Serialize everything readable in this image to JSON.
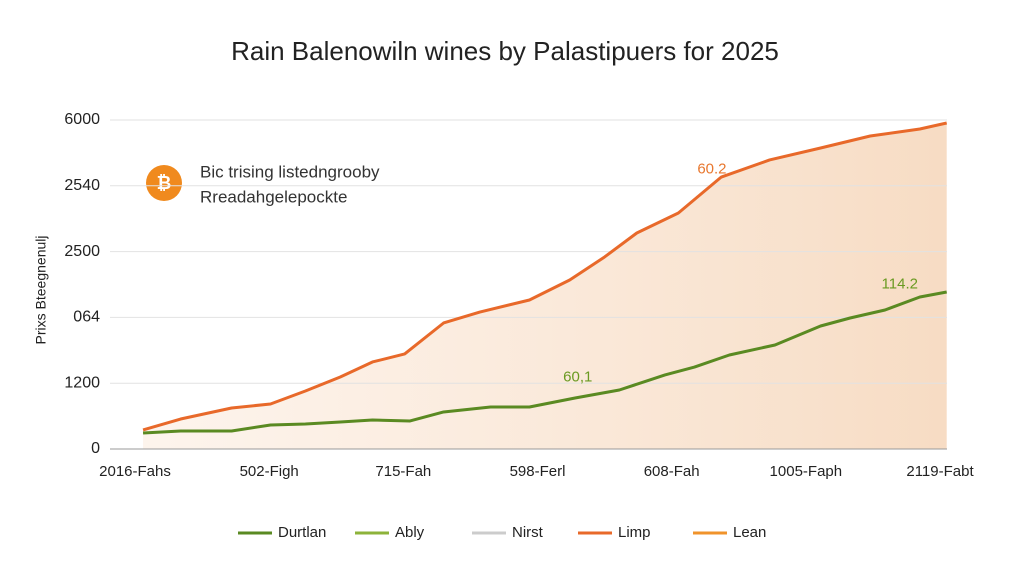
{
  "chart_data": {
    "type": "line",
    "title": "Rain Balenowiln wines by Palastipuers for 2025",
    "y_label": "Prixs Bteegnenulj",
    "info_text": [
      "Bic trising listedngrooby",
      "Rreadahgelepockte"
    ],
    "annotations": [
      {
        "text": "60.2",
        "color": "#e8772e",
        "x": 4.3,
        "y": 5100
      },
      {
        "text": "114.2",
        "color": "#6a9a22",
        "x": 5.7,
        "y": 3000
      },
      {
        "text": "60,1",
        "color": "#6a9a22",
        "x": 3.3,
        "y": 1300
      }
    ],
    "xlim": [
      0,
      6
    ],
    "xticks": [
      {
        "value": 0,
        "label": "2016-Fahs"
      },
      {
        "value": 1,
        "label": "502-Figh"
      },
      {
        "value": 2,
        "label": "715-Fah"
      },
      {
        "value": 3,
        "label": "598-Ferl"
      },
      {
        "value": 4,
        "label": "608-Fah"
      },
      {
        "value": 5,
        "label": "1005-Faph"
      },
      {
        "value": 6,
        "label": "2119-Fabt"
      }
    ],
    "ylim": [
      0,
      6000
    ],
    "yticks": [
      0,
      1200,
      {
        "value": 2400,
        "label": "064"
      },
      {
        "value": 3600,
        "label": "2500"
      },
      {
        "value": 4800,
        "label": "2540"
      },
      6000
    ],
    "grid": true,
    "series": [
      {
        "name": "Durtlan",
        "color": "#5a8a22",
        "x": [
          0.06,
          0.34,
          0.72,
          1.01,
          1.27,
          1.53,
          1.77,
          2.05,
          2.3,
          2.65,
          2.94,
          3.28,
          3.61,
          3.95,
          4.17,
          4.43,
          4.77,
          5.11,
          5.33,
          5.59,
          5.85,
          6.05
        ],
        "values": [
          292,
          328,
          328,
          438,
          456,
          492,
          529,
          511,
          675,
          766,
          766,
          930,
          1076,
          1350,
          1495,
          1714,
          1897,
          2243,
          2389,
          2535,
          2772,
          2863
        ]
      },
      {
        "name": "Ably",
        "color": "#8db33a",
        "x": [],
        "values": []
      },
      {
        "name": "Nirst",
        "color": "#cccccc",
        "x": [],
        "values": []
      },
      {
        "name": "Limp",
        "color": "#e8692a",
        "fill": true,
        "x": [
          0.06,
          0.34,
          0.72,
          1.01,
          1.27,
          1.53,
          1.77,
          2.01,
          2.3,
          2.57,
          2.94,
          3.24,
          3.5,
          3.74,
          4.05,
          4.37,
          4.73,
          5.11,
          5.48,
          5.85,
          6.05
        ],
        "values": [
          347,
          547,
          748,
          821,
          1058,
          1313,
          1587,
          1733,
          2298,
          2498,
          2717,
          3082,
          3502,
          3939,
          4304,
          4960,
          5271,
          5489,
          5708,
          5836,
          5945
        ]
      },
      {
        "name": "Lean",
        "color": "#f0932b",
        "x": [],
        "values": []
      }
    ]
  }
}
